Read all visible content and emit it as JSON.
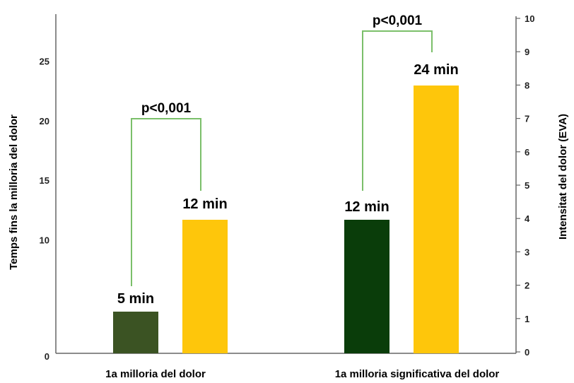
{
  "chart_data": {
    "type": "bar",
    "categories": [
      "1a milloria del dolor",
      "1a milloria significativa del dolor"
    ],
    "series": [
      {
        "values": [
          5,
          12
        ],
        "value_labels": [
          "5 min",
          "12 min"
        ]
      },
      {
        "values": [
          12,
          24
        ],
        "value_labels": [
          "12 min",
          "24 min"
        ]
      }
    ],
    "ylabel": "Temps fins la milloria del dolor",
    "ylabel_right": "Intensitat del dolor (EVA)",
    "y_ticks_left": [
      "0",
      "10",
      "15",
      "20",
      "25"
    ],
    "y_ticks_right": [
      "0",
      "1",
      "2",
      "3",
      "4",
      "5",
      "6",
      "7",
      "8",
      "9",
      "10"
    ],
    "ylim_right": [
      0,
      10
    ],
    "significance": [
      "p<0,001",
      "p<0,001"
    ],
    "grid": false,
    "legend": "none",
    "colors": {
      "group1_dark": "#3b5323",
      "group2_dark": "#0a3d0a",
      "light": "#fec60b",
      "bracket": "#7bbf6a",
      "axis": "#666666"
    }
  }
}
